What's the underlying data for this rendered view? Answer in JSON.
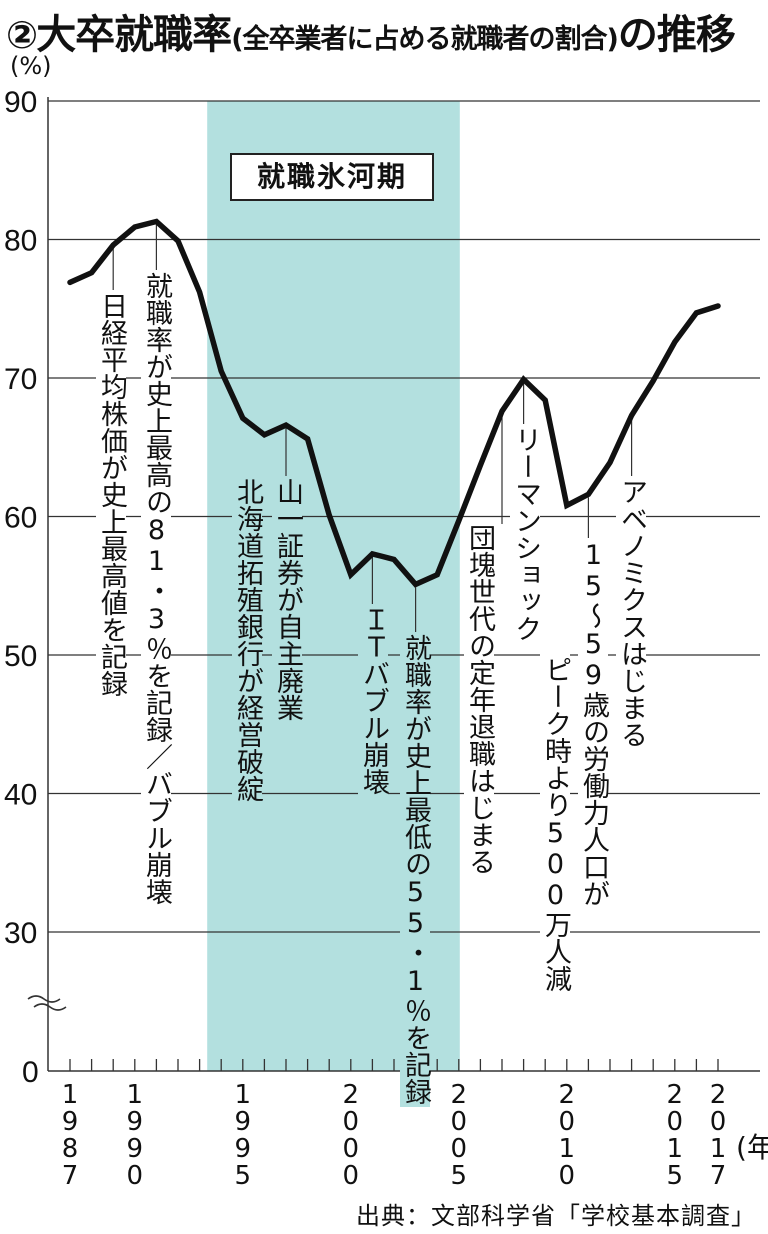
{
  "title": {
    "number": "②",
    "main": "大卒就職率",
    "sub": "(全卒業者に占める就職者の割合)",
    "tail": "の推移"
  },
  "y_unit": "(%)",
  "x_unit": "年",
  "era_label": "就職氷河期",
  "source": "出典：文部科学省「学校基本調査」",
  "annotations": [
    {
      "id": "nikkei",
      "year": 1989,
      "text": "日経平均株価が史上最高値を記録"
    },
    {
      "id": "peak",
      "year": 1991,
      "text": "就職率が史上最高の81・3％を記録／バブル崩壊"
    },
    {
      "id": "yamaichi",
      "year": 1997,
      "text": "山一証券が自主廃業"
    },
    {
      "id": "takugin",
      "year": 1997,
      "text": "北海道拓殖銀行が経営破綻"
    },
    {
      "id": "itbubble",
      "year": 2001,
      "text": "ＩＴバブル崩壊"
    },
    {
      "id": "lowest",
      "year": 2003,
      "text": "就職率が史上最低の55・1％を記録"
    },
    {
      "id": "dankai",
      "year": 2007,
      "text": "団塊世代の定年退職はじまる"
    },
    {
      "id": "lehman",
      "year": 2008,
      "text": "リーマンショック"
    },
    {
      "id": "labor1",
      "year": 2011,
      "text": "15～59歳の労働力人口が"
    },
    {
      "id": "labor2",
      "year": 2011,
      "text": "ピーク時より500万人減"
    },
    {
      "id": "abenomics",
      "year": 2013,
      "text": "アベノミクスはじまる"
    }
  ],
  "colors": {
    "line": "#111111",
    "shade": "#b3e0df",
    "grid": "#333333"
  },
  "chart_data": {
    "type": "line",
    "title": "大卒就職率(全卒業者に占める就職者の割合)の推移",
    "xlabel": "年",
    "ylabel": "(%)",
    "ylim": [
      0,
      90
    ],
    "y_break": [
      0,
      30
    ],
    "yticks": [
      0,
      30,
      40,
      50,
      60,
      70,
      80,
      90
    ],
    "xtick_labels": [
      "1987",
      "1990",
      "1995",
      "2000",
      "2005",
      "2010",
      "2015",
      "2017"
    ],
    "grid": true,
    "shaded_region": {
      "label": "就職氷河期",
      "from": 1994,
      "to": 2005
    },
    "x": [
      1987,
      1988,
      1989,
      1990,
      1991,
      1992,
      1993,
      1994,
      1995,
      1996,
      1997,
      1998,
      1999,
      2000,
      2001,
      2002,
      2003,
      2004,
      2005,
      2006,
      2007,
      2008,
      2009,
      2010,
      2011,
      2012,
      2013,
      2014,
      2015,
      2016,
      2017
    ],
    "series": [
      {
        "name": "大卒就職率",
        "values": [
          76.9,
          77.6,
          79.6,
          80.9,
          81.3,
          79.9,
          76.2,
          70.5,
          67.1,
          65.9,
          66.6,
          65.6,
          60.1,
          55.8,
          57.3,
          56.9,
          55.1,
          55.8,
          59.7,
          63.7,
          67.6,
          69.9,
          68.4,
          60.8,
          61.6,
          63.9,
          67.3,
          69.8,
          72.6,
          74.7,
          75.2
        ]
      }
    ]
  }
}
